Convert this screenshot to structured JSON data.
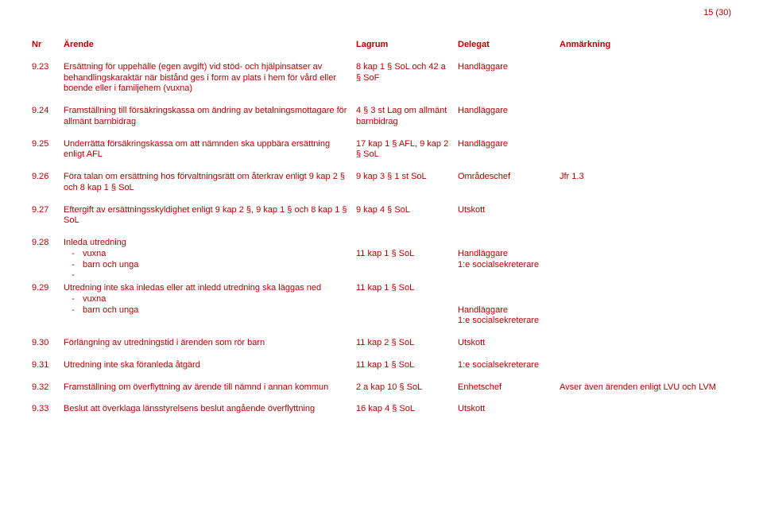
{
  "pageNumber": "15 (30)",
  "headers": {
    "nr": "Nr",
    "desc": "Ärende",
    "law": "Lagrum",
    "delegate": "Delegat",
    "note": "Anmärkning"
  },
  "rows": [
    {
      "nr": "9.23",
      "desc": "Ersättning för uppehälle (egen avgift) vid stöd- och hjälpinsatser av behandlingskaraktär när bistånd ges i form av plats i hem för vård eller boende eller i familjehem (vuxna)",
      "law": "8 kap 1 § SoL och 42 a § SoF",
      "delegate": "Handläggare",
      "note": ""
    },
    {
      "nr": "9.24",
      "desc": "Framställning till försäkringskassa om ändring av betalningsmottagare för allmänt barnbidrag",
      "law": "4 § 3 st Lag om allmänt barnbidrag",
      "delegate": "Handläggare",
      "note": ""
    },
    {
      "nr": "9.25",
      "desc": "Underrätta försäkringskassa om att nämnden ska uppbära ersättning enligt AFL",
      "law": "17 kap 1 § AFL, 9 kap 2 § SoL",
      "delegate": "Handläggare",
      "note": ""
    },
    {
      "nr": "9.26",
      "desc": "Föra talan om ersättning hos förvaltningsrätt om återkrav enligt 9 kap 2 § och 8 kap 1 § SoL",
      "law": "9 kap 3 § 1 st SoL",
      "delegate": "Områdeschef",
      "note": "Jfr 1.3"
    },
    {
      "nr": "9.27",
      "desc": "Eftergift av ersättningsskyldighet enligt 9 kap 2 §, 9 kap 1 § och 8 kap 1 § SoL",
      "law": "9 kap 4 § SoL",
      "delegate": "Utskott",
      "note": ""
    }
  ],
  "row928": {
    "nr": "9.28",
    "desc_main": "Inleda utredning",
    "sub1": "vuxna",
    "sub2": "barn och unga",
    "law": "11 kap 1 § SoL",
    "del1": "Handläggare",
    "del2": "1:e socialsekreterare"
  },
  "row929": {
    "nr": "9.29",
    "desc_main": "Utredning inte ska inledas eller att inledd utredning ska läggas ned",
    "sub1": "vuxna",
    "sub2": "barn och unga",
    "law": "11 kap 1 § SoL",
    "del1": "Handläggare",
    "del2": "1:e socialsekreterare"
  },
  "rows2": [
    {
      "nr": "9.30",
      "desc": "Förlängning av utredningstid i ärenden som rör barn",
      "law": "11 kap 2 § SoL",
      "delegate": "Utskott",
      "note": ""
    },
    {
      "nr": "9.31",
      "desc": "Utredning inte ska föranleda åtgärd",
      "law": "11 kap 1 § SoL",
      "delegate": "1:e socialsekreterare",
      "note": ""
    },
    {
      "nr": "9.32",
      "desc": "Framställning om överflyttning av ärende till nämnd i annan kommun",
      "law": "2 a kap 10 § SoL",
      "delegate": "Enhetschef",
      "note": "Avser även ärenden enligt LVU och LVM"
    },
    {
      "nr": "9.33",
      "desc": "Beslut att överklaga länsstyrelsens beslut angående överflyttning",
      "law": "16 kap 4 § SoL",
      "delegate": "Utskott",
      "note": ""
    }
  ],
  "dash": "-"
}
